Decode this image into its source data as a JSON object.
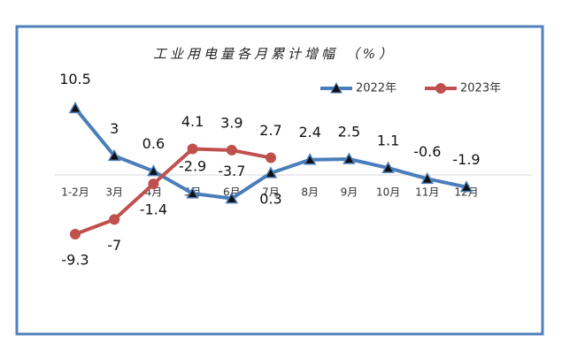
{
  "chart_data": {
    "type": "line",
    "title": "工业用电量各月累计增幅 （%）",
    "categories": [
      "1-2月",
      "3月",
      "4月",
      "5月",
      "6月",
      "7月",
      "8月",
      "9月",
      "10月",
      "11月",
      "12月"
    ],
    "series": [
      {
        "name": "2022年",
        "color": "#4a7ebb",
        "marker": "triangle",
        "values": [
          10.5,
          3.0,
          0.6,
          -2.9,
          -3.7,
          0.3,
          2.4,
          2.5,
          1.1,
          -0.6,
          -1.9
        ]
      },
      {
        "name": "2023年",
        "color": "#c0504d",
        "marker": "circle",
        "values": [
          -9.3,
          -7.0,
          -1.4,
          4.1,
          3.9,
          2.7,
          null,
          null,
          null,
          null,
          null
        ]
      }
    ],
    "legend": "top-right"
  }
}
